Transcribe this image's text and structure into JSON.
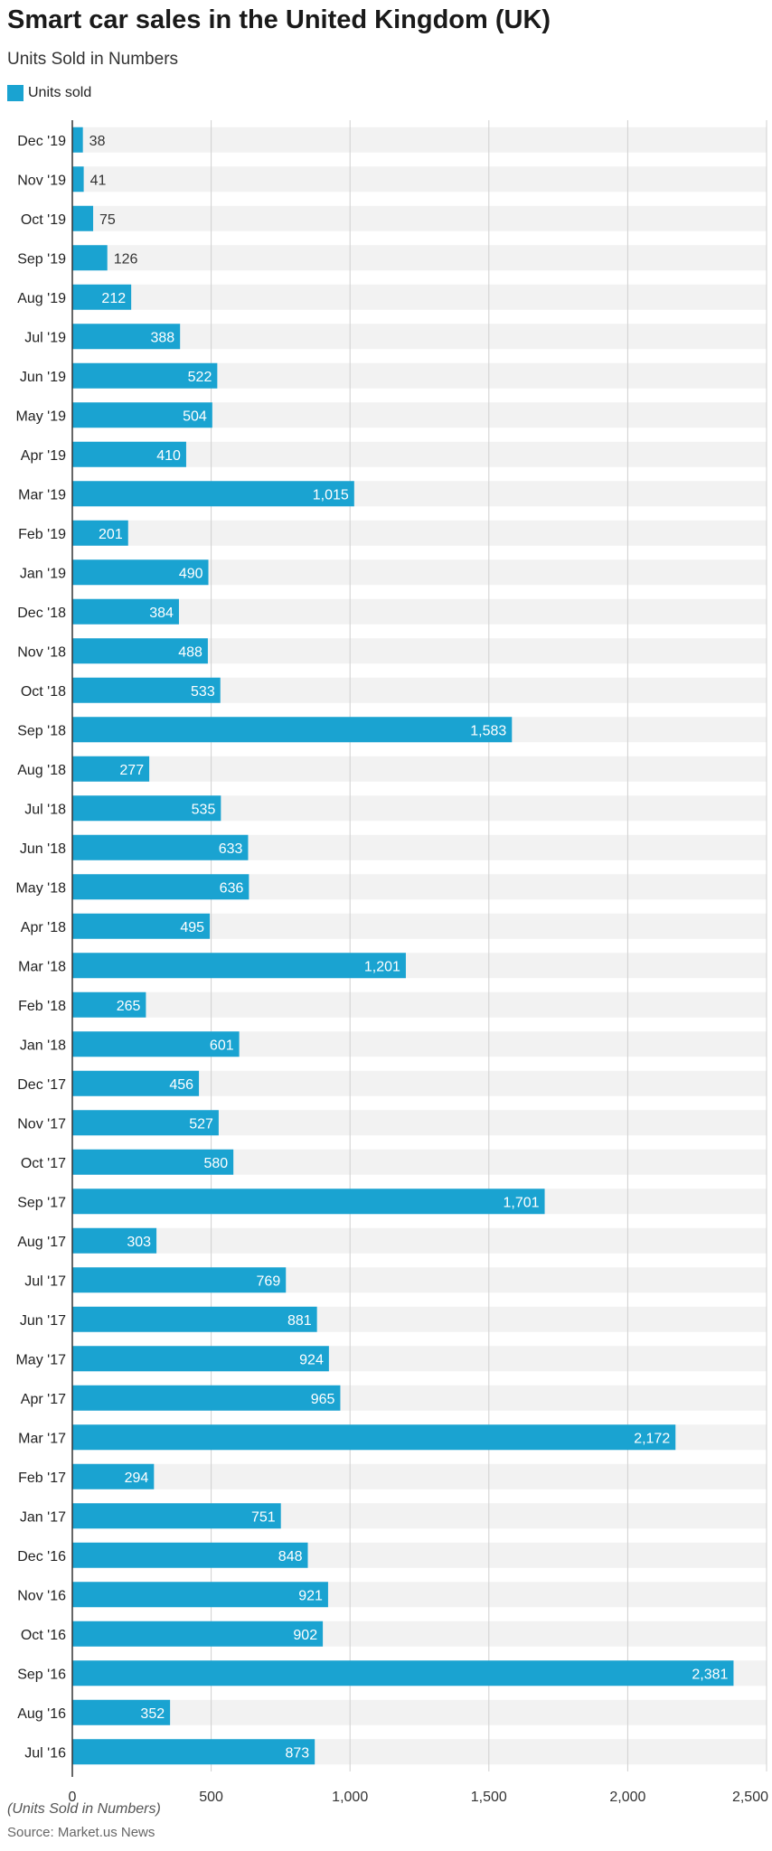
{
  "header": {
    "title": "Smart car sales in the United Kingdom (UK)",
    "subtitle": "Units Sold in Numbers"
  },
  "footer": {
    "note": "(Units Sold in Numbers)",
    "source": "Source: Market.us News"
  },
  "colors": {
    "bar": "#1aa3d1",
    "band": "#f2f2f2",
    "grid": "#d0d0d0",
    "axis": "#333333",
    "label_inside": "#ffffff",
    "label_outside": "#333333"
  },
  "chart_data": {
    "type": "bar",
    "orientation": "horizontal",
    "title": "Smart car sales in the United Kingdom (UK)",
    "subtitle": "Units Sold in Numbers",
    "legend_position": "top-left",
    "grid": true,
    "xlim": [
      0,
      2500
    ],
    "xticks": [
      0,
      500,
      1000,
      1500,
      2000,
      2500
    ],
    "xtick_labels": [
      "0",
      "500",
      "1,000",
      "1,500",
      "2,000",
      "2,500"
    ],
    "categories": [
      "Dec '19",
      "Nov '19",
      "Oct '19",
      "Sep '19",
      "Aug '19",
      "Jul '19",
      "Jun '19",
      "May '19",
      "Apr '19",
      "Mar '19",
      "Feb '19",
      "Jan '19",
      "Dec '18",
      "Nov '18",
      "Oct '18",
      "Sep '18",
      "Aug '18",
      "Jul '18",
      "Jun '18",
      "May '18",
      "Apr '18",
      "Mar '18",
      "Feb '18",
      "Jan '18",
      "Dec '17",
      "Nov '17",
      "Oct '17",
      "Sep '17",
      "Aug '17",
      "Jul '17",
      "Jun '17",
      "May '17",
      "Apr '17",
      "Mar '17",
      "Feb '17",
      "Jan '17",
      "Dec '16",
      "Nov '16",
      "Oct '16",
      "Sep '16",
      "Aug '16",
      "Jul '16"
    ],
    "series": [
      {
        "name": "Units sold",
        "values": [
          38,
          41,
          75,
          126,
          212,
          388,
          522,
          504,
          410,
          1015,
          201,
          490,
          384,
          488,
          533,
          1583,
          277,
          535,
          633,
          636,
          495,
          1201,
          265,
          601,
          456,
          527,
          580,
          1701,
          303,
          769,
          881,
          924,
          965,
          2172,
          294,
          751,
          848,
          921,
          902,
          2381,
          352,
          873
        ],
        "labels": [
          "38",
          "41",
          "75",
          "126",
          "212",
          "388",
          "522",
          "504",
          "410",
          "1,015",
          "201",
          "490",
          "384",
          "488",
          "533",
          "1,583",
          "277",
          "535",
          "633",
          "636",
          "495",
          "1,201",
          "265",
          "601",
          "456",
          "527",
          "580",
          "1,701",
          "303",
          "769",
          "881",
          "924",
          "965",
          "2,172",
          "294",
          "751",
          "848",
          "921",
          "902",
          "2,381",
          "352",
          "873"
        ]
      }
    ]
  }
}
